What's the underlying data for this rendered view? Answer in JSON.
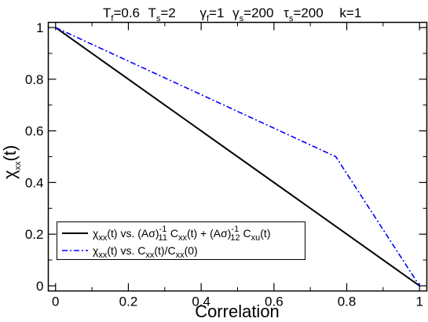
{
  "header": {
    "tf_sym": "T",
    "tf_sub": "f",
    "tf_val": "=0.6",
    "ts_sym": "T",
    "ts_sub": "s",
    "ts_val": "=2",
    "gf_sym": "γ",
    "gf_sub": "f",
    "gf_val": "=1",
    "gs_sym": "γ",
    "gs_sub": "s",
    "gs_val": "=200",
    "taus_sym": "τ",
    "taus_sub": "s",
    "taus_val": "=200",
    "k_text": "k=1"
  },
  "axes": {
    "xlabel": "Correlation",
    "ylabel_main": "χ",
    "ylabel_sub": "xx",
    "ylabel_arg": "(t)"
  },
  "legend": {
    "entry1": {
      "chi": "χ",
      "chi_sub": "xx",
      "chi_arg": "(t) vs. (Aσ)",
      "sup1": "-1",
      "sub1": "11",
      "c1": " C",
      "c1_sub": "xx",
      "c1_arg": "(t) + (Aσ)",
      "sup2": "-1",
      "sub2": "12",
      "c2": " C",
      "c2_sub": "xu",
      "c2_arg": "(t)"
    },
    "entry2": {
      "chi": "χ",
      "chi_sub": "xx",
      "chi_arg": "(t) vs. C",
      "c_sub1": "xx",
      "mid": "(t)/C",
      "c_sub2": "xx",
      "end": "(0)"
    }
  },
  "chart_data": {
    "type": "line",
    "xlabel": "Correlation",
    "ylabel": "χxx(t)",
    "xlim": [
      -0.02,
      1.02
    ],
    "ylim": [
      -0.02,
      1.02
    ],
    "xticks": [
      0,
      0.2,
      0.4,
      0.6,
      0.8,
      1
    ],
    "xtick_labels": [
      "0",
      "0.2",
      "0.4",
      "0.6",
      "0.8",
      "1"
    ],
    "yticks": [
      0,
      0.2,
      0.4,
      0.6,
      0.8,
      1
    ],
    "ytick_labels": [
      "0",
      "0.2",
      "0.4",
      "0.6",
      "0.8",
      "1"
    ],
    "legend_position": "bottom-left",
    "grid": false,
    "series": [
      {
        "name": "χxx(t) vs. (Aσ)^-1_11 Cxx(t) + (Aσ)^-1_12 Cxu(t)",
        "color": "#000000",
        "style": "solid",
        "x": [
          0,
          1
        ],
        "y": [
          1,
          0
        ]
      },
      {
        "name": "χxx(t) vs. Cxx(t)/Cxx(0)",
        "color": "#0000ff",
        "style": "dashdot",
        "x": [
          0,
          0.77,
          1
        ],
        "y": [
          1,
          0.5,
          0
        ]
      }
    ]
  }
}
